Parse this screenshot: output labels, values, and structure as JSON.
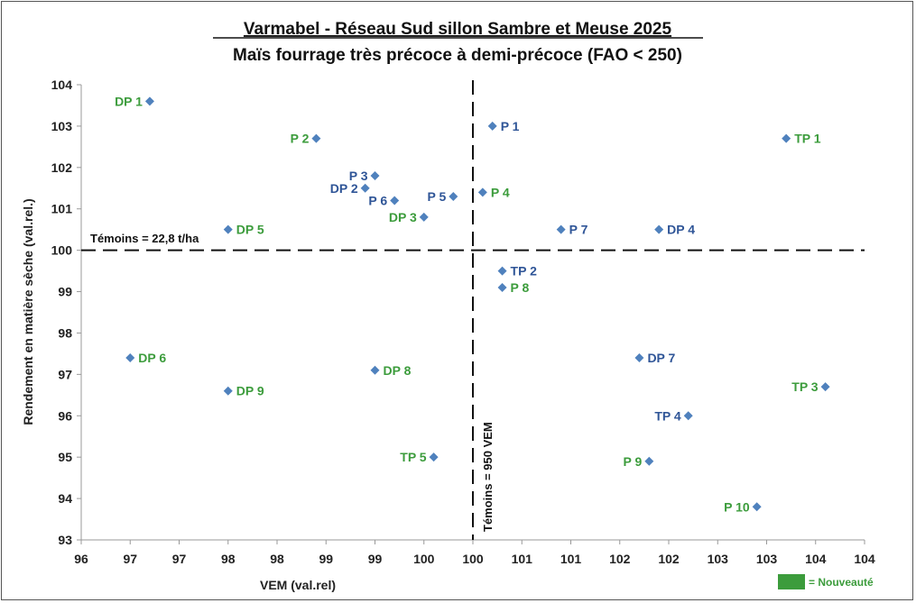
{
  "chart_data": {
    "type": "scatter",
    "title": "Varmabel - Réseau Sud sillon Sambre et Meuse 2025",
    "subtitle": "Maïs fourrage très précoce à demi-précoce (FAO < 250)",
    "xlabel": "VEM (val.rel)",
    "ylabel": "Rendement en matière sèche (val.rel.)",
    "xlim": [
      96,
      104
    ],
    "ylim": [
      93,
      104
    ],
    "x_tick_labels": [
      "96",
      "97",
      "97",
      "98",
      "98",
      "99",
      "99",
      "100",
      "100",
      "101",
      "101",
      "102",
      "102",
      "103",
      "103",
      "104",
      "104"
    ],
    "y_tick_labels": [
      "93",
      "94",
      "95",
      "96",
      "97",
      "98",
      "99",
      "100",
      "101",
      "102",
      "103",
      "104"
    ],
    "grid": false,
    "reference_lines": [
      {
        "axis": "y",
        "value": 100,
        "label": "Témoins = 22,8 t/ha"
      },
      {
        "axis": "x",
        "value": 100,
        "label": "Témoins = 950 VEM"
      }
    ],
    "legend": {
      "label": "= Nouveauté",
      "placement": "bottom-right"
    },
    "colors": {
      "marker": "#4f81bd",
      "standard_label": "#2f5597",
      "new_label": "#3c9c3c",
      "reference": "#111111"
    },
    "points": [
      {
        "label": "DP 1",
        "x": 96.7,
        "y": 103.6,
        "new": true,
        "side": "left"
      },
      {
        "label": "P 2",
        "x": 98.4,
        "y": 102.7,
        "new": true,
        "side": "left"
      },
      {
        "label": "P 1",
        "x": 100.2,
        "y": 103.0,
        "new": false,
        "side": "right"
      },
      {
        "label": "TP 1",
        "x": 103.2,
        "y": 102.7,
        "new": true,
        "side": "right"
      },
      {
        "label": "P 3",
        "x": 99.0,
        "y": 101.8,
        "new": false,
        "side": "left"
      },
      {
        "label": "DP 2",
        "x": 98.9,
        "y": 101.5,
        "new": false,
        "side": "left"
      },
      {
        "label": "P 6",
        "x": 99.2,
        "y": 101.2,
        "new": false,
        "side": "left"
      },
      {
        "label": "P 5",
        "x": 99.8,
        "y": 101.3,
        "new": false,
        "side": "left"
      },
      {
        "label": "P 4",
        "x": 100.1,
        "y": 101.4,
        "new": true,
        "side": "right"
      },
      {
        "label": "DP 3",
        "x": 99.5,
        "y": 100.8,
        "new": true,
        "side": "left"
      },
      {
        "label": "DP 5",
        "x": 97.5,
        "y": 100.5,
        "new": true,
        "side": "right"
      },
      {
        "label": "P 7",
        "x": 100.9,
        "y": 100.5,
        "new": false,
        "side": "right"
      },
      {
        "label": "DP 4",
        "x": 101.9,
        "y": 100.5,
        "new": false,
        "side": "right"
      },
      {
        "label": "TP 2",
        "x": 100.3,
        "y": 99.5,
        "new": false,
        "side": "right"
      },
      {
        "label": "P 8",
        "x": 100.3,
        "y": 99.1,
        "new": true,
        "side": "right"
      },
      {
        "label": "DP 6",
        "x": 96.5,
        "y": 97.4,
        "new": true,
        "side": "right"
      },
      {
        "label": "DP 8",
        "x": 99.0,
        "y": 97.1,
        "new": true,
        "side": "right"
      },
      {
        "label": "DP 9",
        "x": 97.5,
        "y": 96.6,
        "new": true,
        "side": "right"
      },
      {
        "label": "DP 7",
        "x": 101.7,
        "y": 97.4,
        "new": false,
        "side": "right"
      },
      {
        "label": "TP 3",
        "x": 103.6,
        "y": 96.7,
        "new": true,
        "side": "left"
      },
      {
        "label": "TP 4",
        "x": 102.2,
        "y": 96.0,
        "new": false,
        "side": "left"
      },
      {
        "label": "TP 5",
        "x": 99.6,
        "y": 95.0,
        "new": true,
        "side": "left"
      },
      {
        "label": "P 9",
        "x": 101.8,
        "y": 94.9,
        "new": true,
        "side": "left"
      },
      {
        "label": "P 10",
        "x": 102.9,
        "y": 93.8,
        "new": true,
        "side": "left"
      }
    ]
  }
}
